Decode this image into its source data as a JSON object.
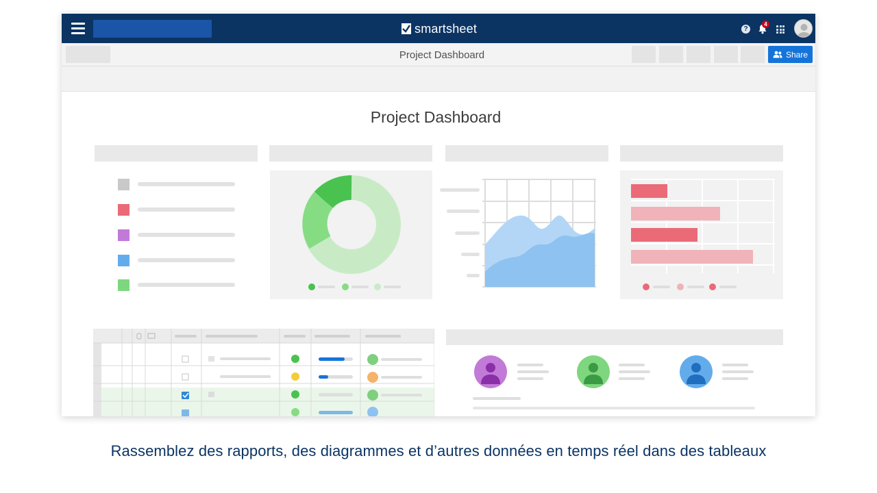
{
  "app": {
    "logo_text": "smartsheet",
    "notification_count": "4"
  },
  "toolbar": {
    "title": "Project Dashboard",
    "share_label": "Share"
  },
  "dashboard": {
    "title": "Project Dashboard"
  },
  "colors": {
    "topbar": "#0b3463",
    "accent": "#1574d9",
    "legend": [
      "#c9c9c9",
      "#ea6a78",
      "#c27ad8",
      "#63acec",
      "#7ed67e"
    ]
  },
  "caption": "Rassemblez des rapports, des diagrammes et d’autres données en temps réel dans des tableaux"
}
